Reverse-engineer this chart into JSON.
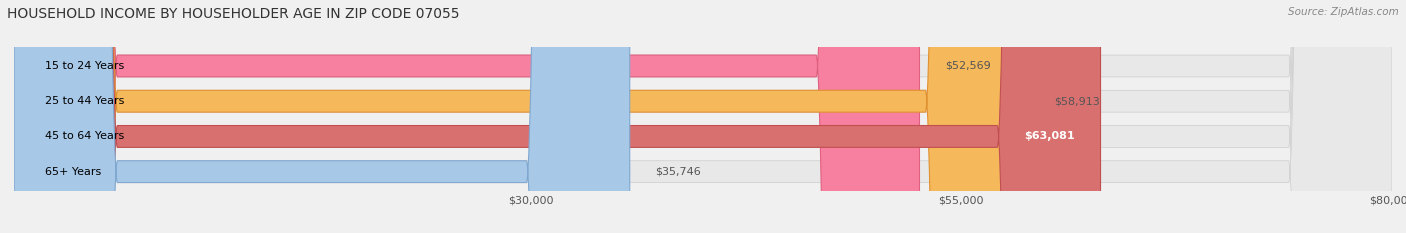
{
  "title": "HOUSEHOLD INCOME BY HOUSEHOLDER AGE IN ZIP CODE 07055",
  "source": "Source: ZipAtlas.com",
  "categories": [
    "15 to 24 Years",
    "25 to 44 Years",
    "45 to 64 Years",
    "65+ Years"
  ],
  "values": [
    52569,
    58913,
    63081,
    35746
  ],
  "bar_colors": [
    "#f780a0",
    "#f5b85a",
    "#d97070",
    "#a8c8e8"
  ],
  "bar_edge_colors": [
    "#e06080",
    "#e09030",
    "#c05050",
    "#80a8d0"
  ],
  "value_labels": [
    "$52,569",
    "$58,913",
    "$63,081",
    "$35,746"
  ],
  "value_label_inside": [
    false,
    false,
    true,
    false
  ],
  "xlim": [
    0,
    80000
  ],
  "xticks": [
    30000,
    55000,
    80000
  ],
  "xtick_labels": [
    "$30,000",
    "$55,000",
    "$80,000"
  ],
  "background_color": "#f0f0f0",
  "bar_background_color": "#e8e8e8",
  "title_fontsize": 10,
  "source_fontsize": 7.5,
  "label_fontsize": 8,
  "value_fontsize": 8,
  "bar_height": 0.62
}
